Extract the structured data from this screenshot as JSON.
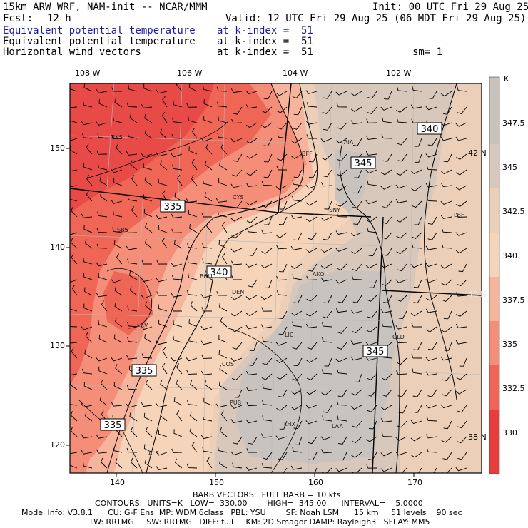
{
  "header": {
    "model": "15km ARW WRF, NAM-init -- NCAR/MMM",
    "init": "Init: 00 UTC Fri 29 Aug 25",
    "fcst_label": "Fcst:",
    "fcst_value": "12 h",
    "valid": "Valid: 12 UTC Fri 29 Aug 25 (06 MDT Fri 29 Aug 25)",
    "fields": [
      {
        "name": "Equivalent potential temperature",
        "level": "at k-index =  51",
        "color": "#1a1aa6"
      },
      {
        "name": "Equivalent potential temperature",
        "level": "at k-index =  51",
        "color": "#000000"
      },
      {
        "name": "Horizontal wind vectors",
        "level": "at k-index =  51",
        "color": "#000000"
      }
    ],
    "smooth": "sm= 1"
  },
  "map": {
    "top_lon_labels": [
      "108 W",
      "106 W",
      "104 W",
      "102 W"
    ],
    "left_y_labels": [
      "150",
      "140",
      "130",
      "120"
    ],
    "bottom_x_labels": [
      "140",
      "150",
      "160",
      "170"
    ],
    "right_lat_labels": [
      "42 N",
      "40 N",
      "38 N"
    ],
    "stations": [
      "RKS",
      "BFF",
      "AIA",
      "CYS",
      "SNY",
      "LBF",
      "SBS",
      "BOU",
      "DEN",
      "AKO",
      "LXV",
      "LIC",
      "GLD",
      "COS",
      "PUB",
      "LHX",
      "LAA",
      "ALS"
    ],
    "contour_labels": [
      "340",
      "345",
      "335",
      "340",
      "345",
      "335",
      "335"
    ]
  },
  "colorbar": {
    "unit": "K",
    "labels": [
      "347.5",
      "345",
      "342.5",
      "340",
      "337.5",
      "335",
      "332.5",
      "330"
    ],
    "colors": [
      "#c8c2bd",
      "#d8c7bb",
      "#ebcfb9",
      "#f6d4ba",
      "#f7b49c",
      "#f48e78",
      "#ef6556",
      "#e83d3d"
    ]
  },
  "footer": {
    "barb": "BARB VECTORS:  FULL BARB = 10 kts",
    "contours": "CONTOURS:  UNITS=K   LOW=  330.00        HIGH=  345.00      INTERVAL=    5.0000",
    "model_info_1": "Model Info: V3.8.1      CU: G-F Ens  MP: WDM 6class   PBL: YSU        SF: Noah LSM      15 km     51 levels    90 sec",
    "model_info_2": "LW: RRTMG     SW: RRTMG   DIFF: full     KM: 2D Smagor DAMP: Rayleigh3   SFLAY: MM5"
  }
}
